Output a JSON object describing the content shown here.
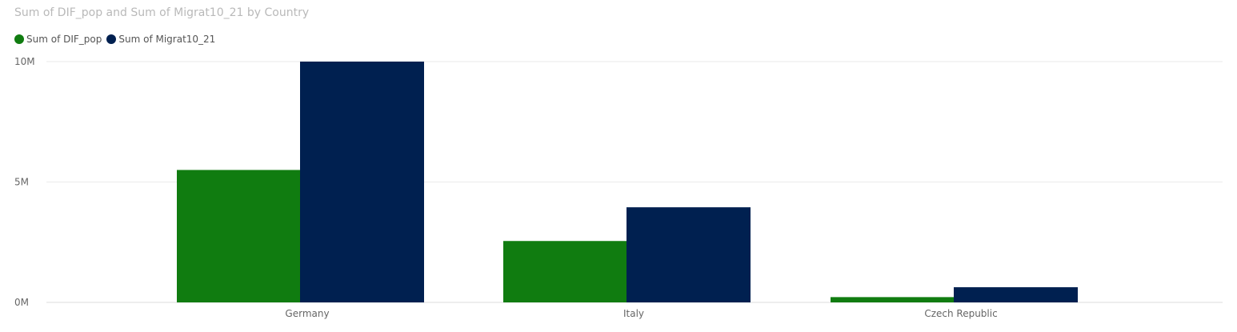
{
  "chart_data": {
    "type": "bar",
    "title": "Sum of DIF_pop and Sum of Migrat10_21 by Country",
    "xlabel": "",
    "ylabel": "",
    "categories": [
      "Germany",
      "Italy",
      "Czech Republic"
    ],
    "series": [
      {
        "name": "Sum of DIF_pop",
        "color": "#107c10",
        "values": [
          5500000,
          2550000,
          220000
        ]
      },
      {
        "name": "Sum of Migrat10_21",
        "color": "#002050",
        "values": [
          10000000,
          3950000,
          630000
        ]
      }
    ],
    "ylim": [
      0,
      10000000
    ],
    "y_ticks": [
      {
        "value": 0,
        "label": "0M"
      },
      {
        "value": 5000000,
        "label": "5M"
      },
      {
        "value": 10000000,
        "label": "10M"
      }
    ],
    "grid": true,
    "legend_position": "top-left"
  }
}
